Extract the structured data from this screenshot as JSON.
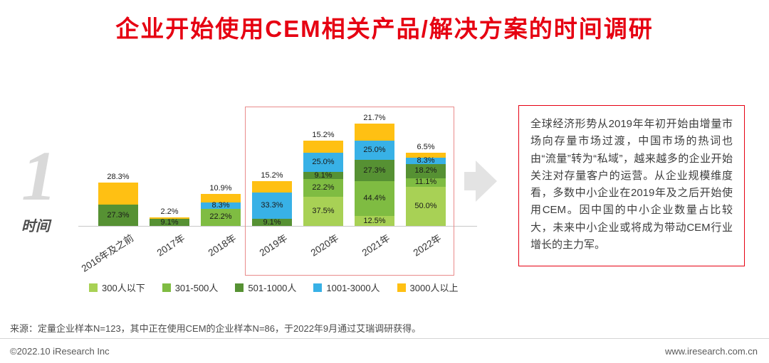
{
  "page": {
    "title": "企业开始使用CEM相关产品/解决方案的时间调研",
    "section_number": "1",
    "section_label": "时间",
    "source_note": "来源：定量企业样本N=123，其中正在使用CEM的企业样本N=86，于2022年9月通过艾瑞调研获得。",
    "copyright": "©2022.10 iResearch Inc",
    "website": "www.iresearch.com.cn"
  },
  "annotation": {
    "text": "全球经济形势从2019年年初开始由增量市场向存量市场过渡，中国市场的热词也由“流量”转为“私域”，越来越多的企业开始关注对存量客户的运营。从企业规模维度看，多数中小企业在2019年及之后开始使用CEM。因中国的中小企业数量占比较大，未来中小企业或将成为带动CEM行业增长的主力军。"
  },
  "colors": {
    "title": "#e60012",
    "annotation_border": "#e60012",
    "highlight_border": "#e98b8b",
    "axis_line": "#c8c8c8",
    "arrow": "#e3e3e3"
  },
  "chart_data": {
    "type": "bar",
    "stacked": true,
    "unit": "%",
    "categories": [
      "2016年及之前",
      "2017年",
      "2018年",
      "2019年",
      "2020年",
      "2021年",
      "2022年"
    ],
    "series": [
      {
        "name": "300人以下",
        "color": "#a8d155",
        "values": [
          0,
          0,
          0,
          0,
          37.5,
          12.5,
          50.0
        ]
      },
      {
        "name": "301-500人",
        "color": "#7fbc42",
        "values": [
          0,
          0,
          22.2,
          0,
          22.2,
          44.4,
          11.1
        ]
      },
      {
        "name": "501-1000人",
        "color": "#569133",
        "values": [
          27.3,
          9.1,
          0,
          9.1,
          9.1,
          27.3,
          18.2
        ]
      },
      {
        "name": "1001-3000人",
        "color": "#38b1e6",
        "values": [
          0,
          0,
          8.3,
          33.3,
          25.0,
          25.0,
          8.3
        ]
      },
      {
        "name": "3000人以上",
        "color": "#ffc013",
        "values": [
          28.3,
          2.2,
          10.9,
          15.2,
          15.2,
          21.7,
          6.5
        ]
      }
    ],
    "highlight_range": [
      "2019年",
      "2022年"
    ],
    "legend_position": "bottom"
  }
}
